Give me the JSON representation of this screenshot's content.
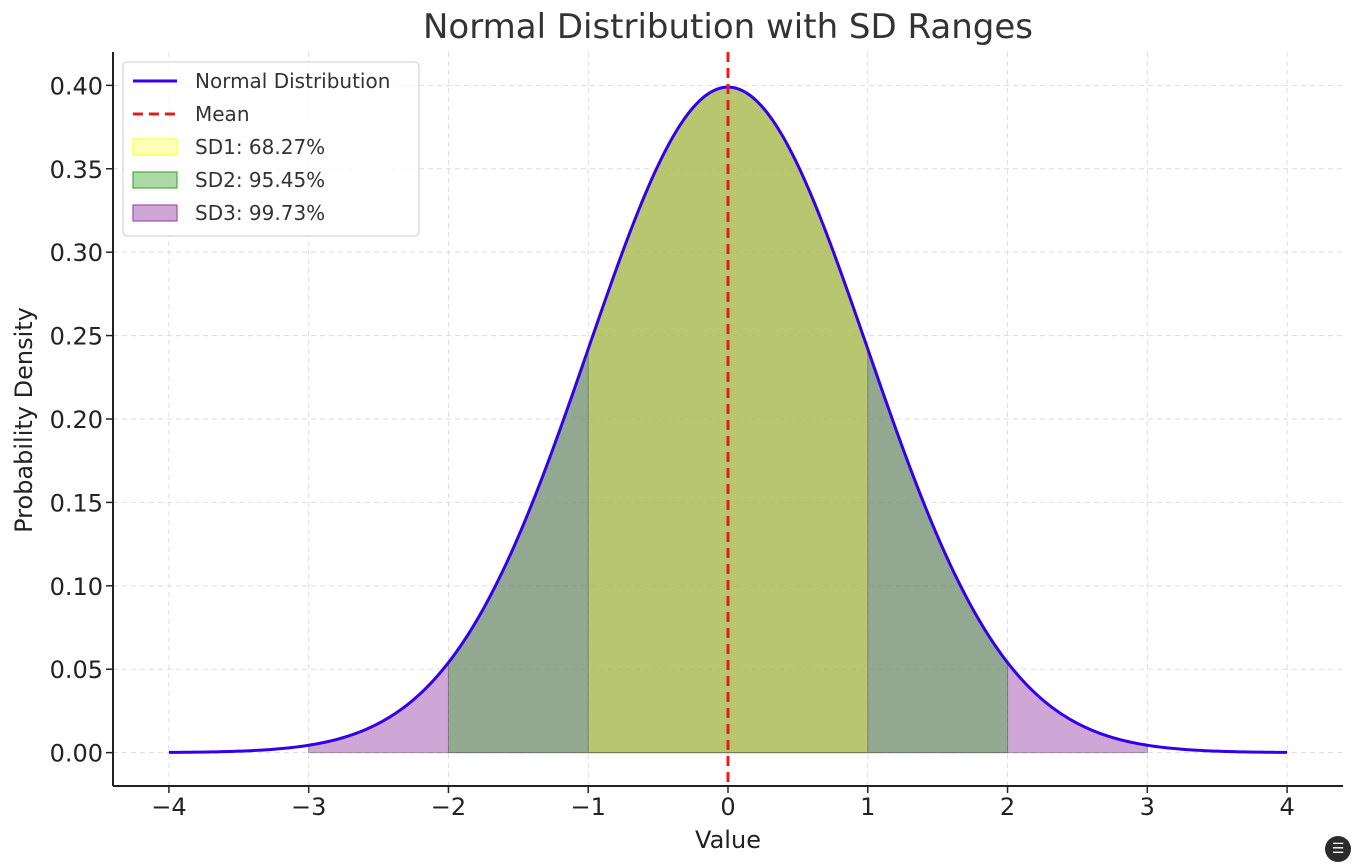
{
  "chart_data": {
    "type": "area",
    "title": "Normal Distribution with SD Ranges",
    "xlabel": "Value",
    "ylabel": "Probability Density",
    "xlim": [
      -4.4,
      4.4
    ],
    "ylim": [
      -0.02,
      0.42
    ],
    "x_ticks": [
      -4,
      -3,
      -2,
      -1,
      0,
      1,
      2,
      3,
      4
    ],
    "x_tick_labels": [
      "−4",
      "−3",
      "−2",
      "−1",
      "0",
      "1",
      "2",
      "3",
      "4"
    ],
    "y_ticks": [
      0.0,
      0.05,
      0.1,
      0.15,
      0.2,
      0.25,
      0.3,
      0.35,
      0.4
    ],
    "y_tick_labels": [
      "0.00",
      "0.05",
      "0.10",
      "0.15",
      "0.20",
      "0.25",
      "0.30",
      "0.35",
      "0.40"
    ],
    "grid": true,
    "legend_position": "top-left",
    "curve": {
      "name": "Normal Distribution",
      "color": "#3300ee",
      "mean": 0,
      "sd": 1,
      "x_range": [
        -4,
        4
      ]
    },
    "mean_line": {
      "name": "Mean",
      "x": 0,
      "color": "#e02020"
    },
    "bands": [
      {
        "name": "SD3: 99.73%",
        "from": -3,
        "to": 3,
        "color": "#a050b0",
        "opacity": 0.5
      },
      {
        "name": "SD2: 95.45%",
        "from": -2,
        "to": 2,
        "color": "#4aaa3a",
        "opacity": 0.45
      },
      {
        "name": "SD1: 68.27%",
        "from": -1,
        "to": 1,
        "color": "#ffff33",
        "opacity": 0.35
      }
    ],
    "legend_order": [
      "Normal Distribution",
      "Mean",
      "SD1: 68.27%",
      "SD2: 95.45%",
      "SD3: 99.73%"
    ]
  },
  "corner_icon": "chat-icon"
}
